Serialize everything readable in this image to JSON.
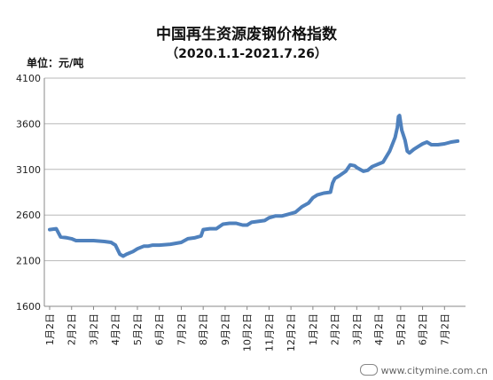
{
  "chart_data": {
    "type": "line",
    "title": "中国再生资源废钢价格指数",
    "subtitle": "（2020.1.1-2021.7.26）",
    "ylabel": "单位：元/吨",
    "xlabel": "",
    "ylim": [
      1600,
      4100
    ],
    "yticks": [
      "1600",
      "2100",
      "2600",
      "3100",
      "3600",
      "4100"
    ],
    "xticks": [
      "1月2日",
      "2月2日",
      "3月2日",
      "4月2日",
      "5月2日",
      "6月2日",
      "7月2日",
      "8月2日",
      "9月2日",
      "10月2日",
      "11月2日",
      "12月2日",
      "1月2日",
      "2月2日",
      "3月2日",
      "4月2日",
      "5月2日",
      "6月2日",
      "7月2日"
    ],
    "grid": "horizontal",
    "line_color": "#4f81bd",
    "series": [
      {
        "values": [
          [
            0,
            2440
          ],
          [
            0.3,
            2450
          ],
          [
            0.5,
            2360
          ],
          [
            0.8,
            2350
          ],
          [
            1.0,
            2340
          ],
          [
            1.2,
            2320
          ],
          [
            1.5,
            2320
          ],
          [
            2.0,
            2320
          ],
          [
            2.5,
            2310
          ],
          [
            2.8,
            2300
          ],
          [
            3.0,
            2270
          ],
          [
            3.2,
            2170
          ],
          [
            3.35,
            2150
          ],
          [
            3.5,
            2170
          ],
          [
            3.8,
            2200
          ],
          [
            4.0,
            2230
          ],
          [
            4.3,
            2260
          ],
          [
            4.5,
            2260
          ],
          [
            4.7,
            2270
          ],
          [
            5.0,
            2270
          ],
          [
            5.5,
            2280
          ],
          [
            6.0,
            2300
          ],
          [
            6.3,
            2340
          ],
          [
            6.6,
            2350
          ],
          [
            6.9,
            2370
          ],
          [
            7.0,
            2440
          ],
          [
            7.3,
            2450
          ],
          [
            7.6,
            2450
          ],
          [
            7.9,
            2500
          ],
          [
            8.2,
            2510
          ],
          [
            8.5,
            2510
          ],
          [
            8.8,
            2490
          ],
          [
            9.0,
            2490
          ],
          [
            9.2,
            2520
          ],
          [
            9.5,
            2530
          ],
          [
            9.8,
            2540
          ],
          [
            10.0,
            2570
          ],
          [
            10.3,
            2590
          ],
          [
            10.6,
            2590
          ],
          [
            10.9,
            2610
          ],
          [
            11.2,
            2630
          ],
          [
            11.5,
            2690
          ],
          [
            11.8,
            2730
          ],
          [
            12.0,
            2790
          ],
          [
            12.2,
            2820
          ],
          [
            12.5,
            2840
          ],
          [
            12.8,
            2850
          ],
          [
            12.9,
            2950
          ],
          [
            13.0,
            3000
          ],
          [
            13.2,
            3030
          ],
          [
            13.5,
            3080
          ],
          [
            13.7,
            3150
          ],
          [
            13.9,
            3140
          ],
          [
            14.0,
            3120
          ],
          [
            14.3,
            3080
          ],
          [
            14.5,
            3090
          ],
          [
            14.7,
            3130
          ],
          [
            15.0,
            3160
          ],
          [
            15.2,
            3180
          ],
          [
            15.5,
            3300
          ],
          [
            15.75,
            3450
          ],
          [
            15.85,
            3560
          ],
          [
            15.9,
            3680
          ],
          [
            15.95,
            3690
          ],
          [
            16.05,
            3530
          ],
          [
            16.2,
            3420
          ],
          [
            16.3,
            3300
          ],
          [
            16.4,
            3280
          ],
          [
            16.6,
            3320
          ],
          [
            16.8,
            3350
          ],
          [
            17.0,
            3380
          ],
          [
            17.2,
            3400
          ],
          [
            17.4,
            3370
          ],
          [
            17.7,
            3370
          ],
          [
            18.0,
            3380
          ],
          [
            18.3,
            3400
          ],
          [
            18.6,
            3410
          ]
        ]
      }
    ]
  },
  "watermark": {
    "text": "www.citymine.com.cn"
  }
}
